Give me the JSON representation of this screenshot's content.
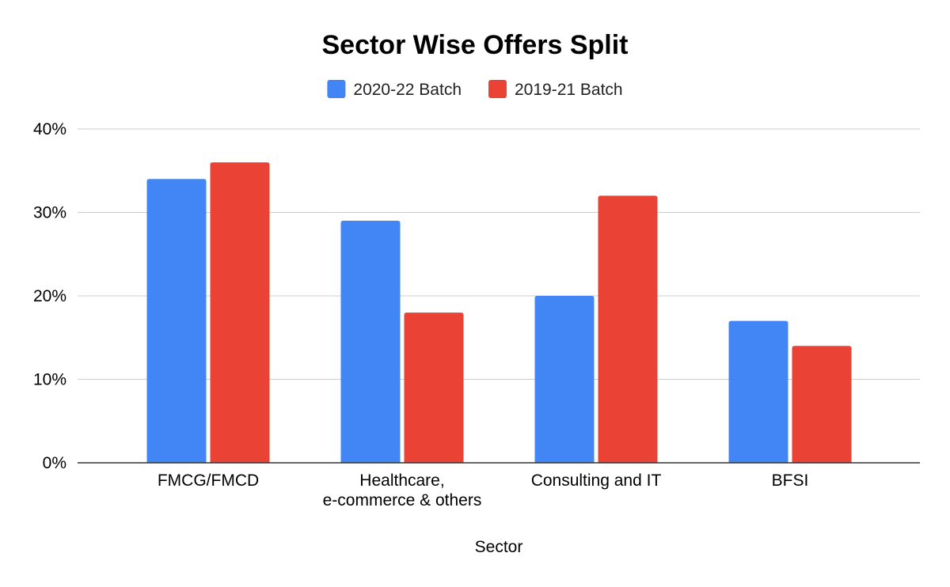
{
  "chart_data": {
    "type": "bar",
    "title": "Sector Wise Offers Split",
    "xlabel": "Sector",
    "ylabel": "",
    "ylim": [
      0,
      0.4
    ],
    "yticks": [
      0,
      0.1,
      0.2,
      0.3,
      0.4
    ],
    "ytick_labels": [
      "0%",
      "10%",
      "20%",
      "30%",
      "40%"
    ],
    "categories": [
      "FMCG/FMCD",
      "Healthcare, e-commerce & others",
      "Consulting and IT",
      "BFSI"
    ],
    "category_label_lines": [
      [
        "FMCG/FMCD"
      ],
      [
        "Healthcare,",
        "e-commerce & others"
      ],
      [
        "Consulting and IT"
      ],
      [
        "BFSI"
      ]
    ],
    "series": [
      {
        "name": "2020-22 Batch",
        "color": "#4285f4",
        "values": [
          0.34,
          0.29,
          0.2,
          0.17
        ]
      },
      {
        "name": "2019-21 Batch",
        "color": "#ea4335",
        "values": [
          0.36,
          0.18,
          0.32,
          0.14
        ]
      }
    ],
    "legend_position": "top",
    "grid": true
  }
}
